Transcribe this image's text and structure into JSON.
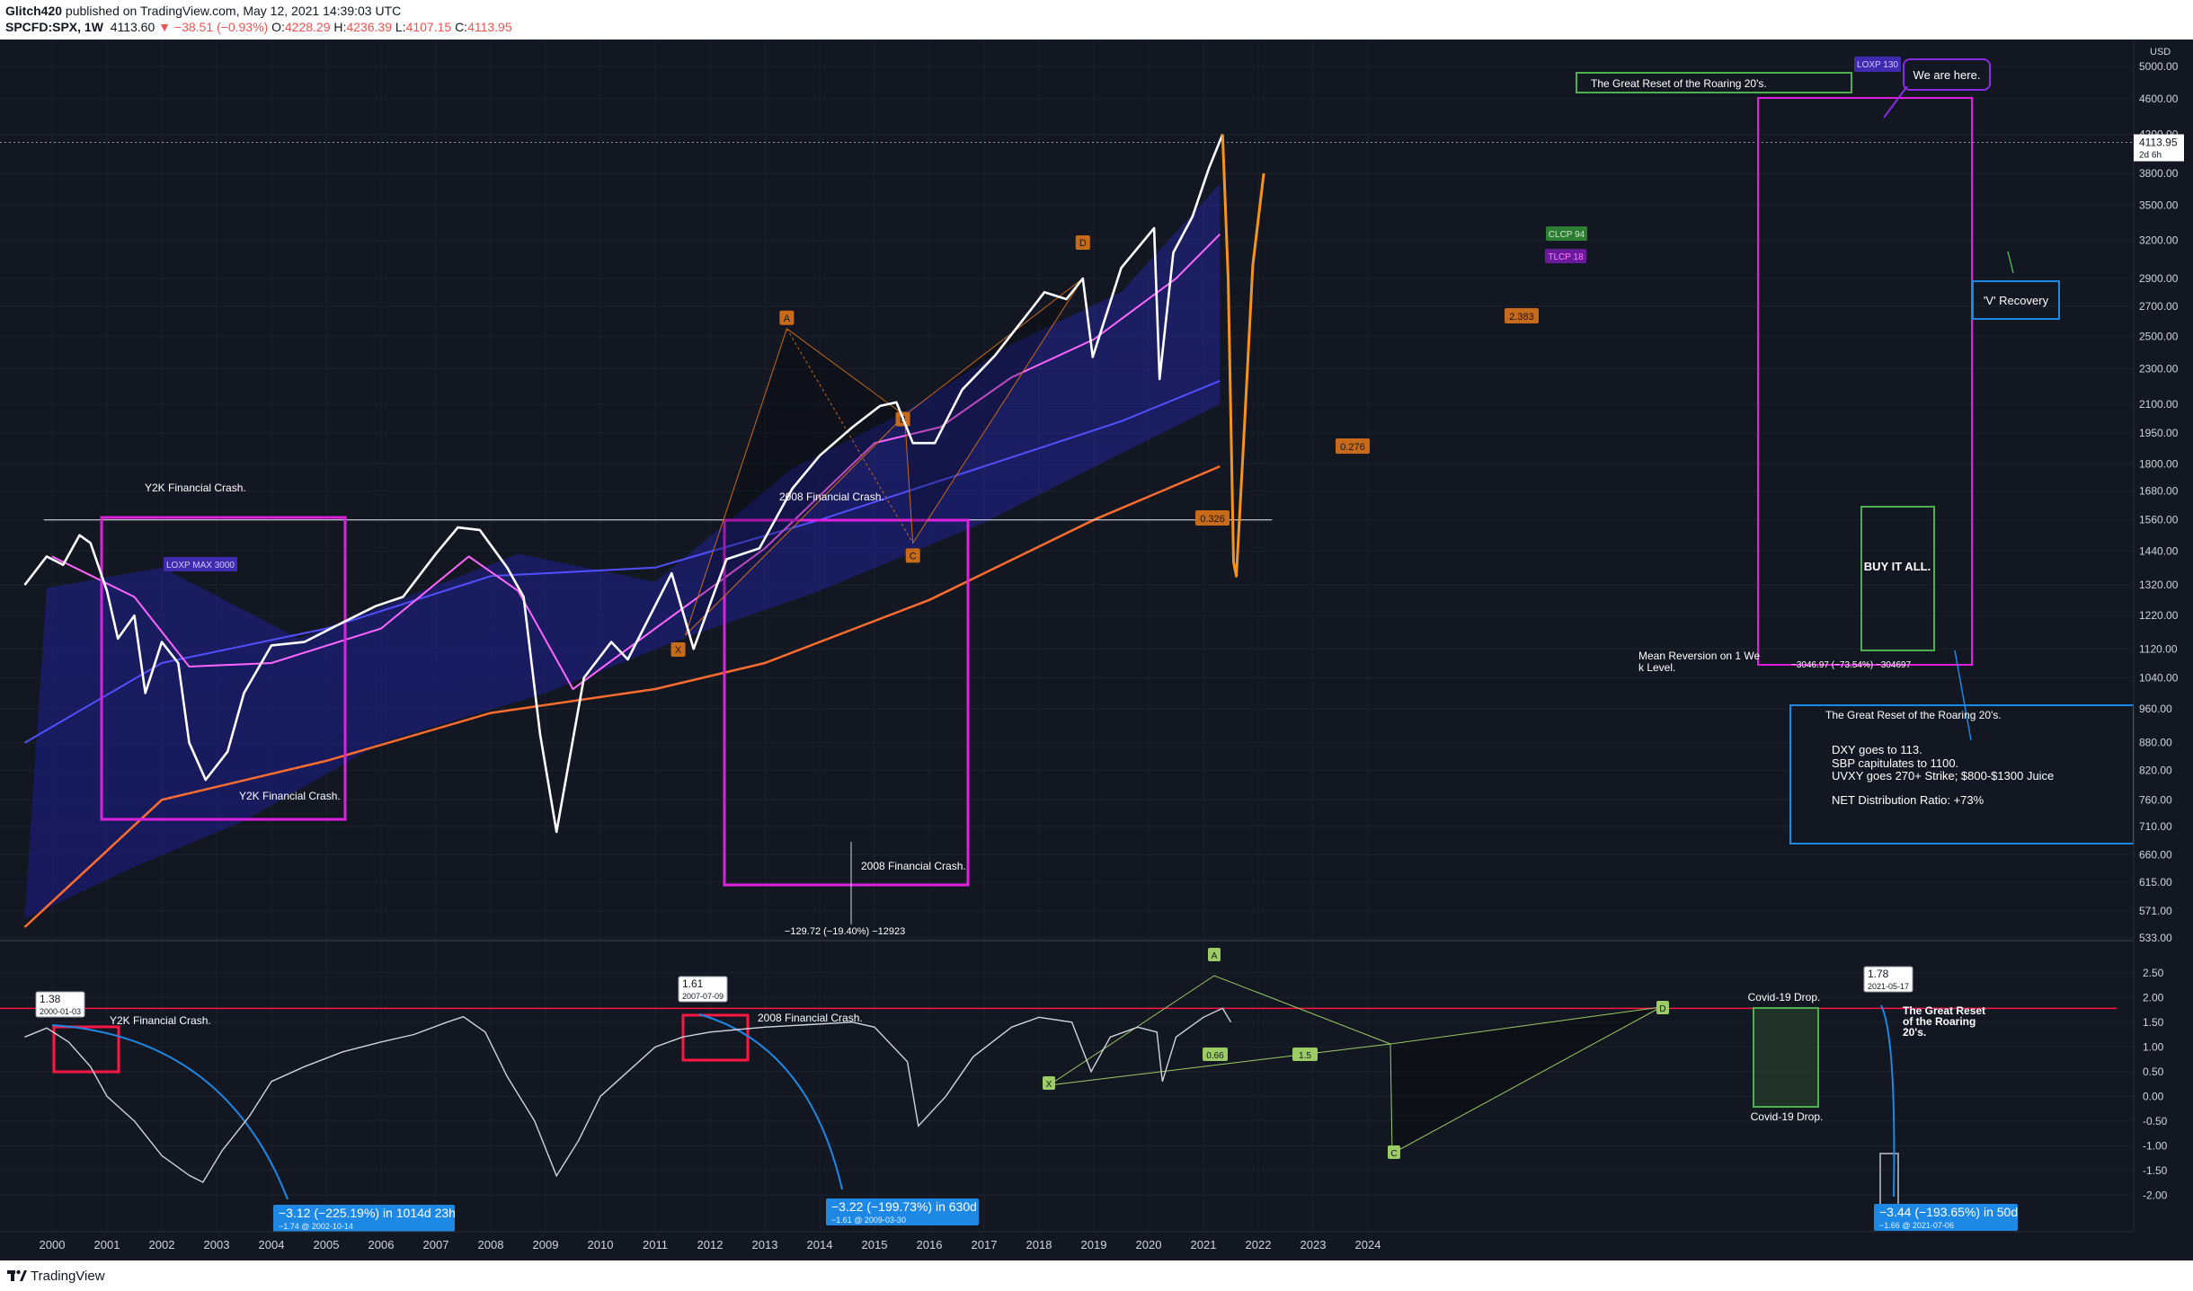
{
  "header": {
    "publisher": "Glitch420",
    "published_text": " published on TradingView.com, May 12, 2021 14:39:03 UTC",
    "symbol": "SPCFD:SPX, 1W",
    "last": "4113.60",
    "change": "−38.51 (−0.93%)",
    "open_label": "O:",
    "open": "4228.29",
    "high_label": "H:",
    "high": "4236.39",
    "low_label": "L:",
    "low": "4107.15",
    "close_label": "C:",
    "close": "4113.95"
  },
  "footer": {
    "brand": "TradingView"
  },
  "colors": {
    "background": "#131722",
    "price": "#ffffff",
    "projection": "#f7931a",
    "magenta": "#e020e0",
    "orange_ma": "#ff6d2e",
    "blue_ma": "#5050ff",
    "pink_ma": "#ff66ff",
    "green": "#4caf50",
    "callout_blue": "#1e88e5",
    "red": "#ff1744"
  },
  "main_axis": {
    "unit": "USD",
    "ticks": [
      "5000.00",
      "4600.00",
      "4200.00",
      "3800.00",
      "3500.00",
      "3200.00",
      "2900.00",
      "2700.00",
      "2500.00",
      "2300.00",
      "2100.00",
      "1950.00",
      "1800.00",
      "1680.00",
      "1560.00",
      "1440.00",
      "1320.00",
      "1220.00",
      "1120.00",
      "1040.00",
      "960.00",
      "880.00",
      "820.00",
      "760.00",
      "710.00",
      "660.00",
      "615.00",
      "571.00",
      "533.00"
    ],
    "price_tag": "4113.95",
    "price_tag_sub": "2d 6h"
  },
  "osc_axis": {
    "ticks": [
      "2.50",
      "2.00",
      "1.50",
      "1.00",
      "0.50",
      "0.00",
      "-0.50",
      "-1.00",
      "-1.50",
      "-2.00"
    ]
  },
  "x_axis": {
    "years": [
      "2000",
      "2001",
      "2002",
      "2003",
      "2004",
      "2005",
      "2006",
      "2007",
      "2008",
      "2009",
      "2010",
      "2011",
      "2012",
      "2013",
      "2014",
      "2015",
      "2016",
      "2017",
      "2018",
      "2019",
      "2020",
      "2021",
      "2022",
      "2023",
      "2024"
    ]
  },
  "chart_data": {
    "type": "line",
    "symbol": "SPCFD:SPX",
    "interval": "1W",
    "y_scale": "log",
    "ylim": [
      533,
      5000
    ],
    "xlim": [
      2000,
      2024
    ],
    "series": [
      {
        "name": "",
        "x": [
          1999.5,
          1999.9,
          2000.2,
          2000.5,
          2000.7,
          2001.0,
          2001.2,
          2001.5,
          2001.7,
          2002.0,
          2002.3,
          2002.5,
          2002.8,
          2003.2,
          2003.5,
          2004.0,
          2004.6,
          2005.2,
          2005.9,
          2006.4,
          2007.0,
          2007.4,
          2007.8,
          2008.3,
          2008.6,
          2008.9,
          2009.2,
          2009.7,
          2010.2,
          2010.5,
          2011.3,
          2011.7,
          2012.3,
          2012.9,
          2013.5,
          2014.0,
          2014.6,
          2015.1,
          2015.4,
          2015.7,
          2016.1,
          2016.6,
          2017.2,
          2017.9,
          2018.1,
          2018.5,
          2018.8,
          2018.98,
          2019.5,
          2020.1,
          2020.2,
          2020.45,
          2020.8,
          2021.1,
          2021.35
        ],
        "y": [
          1320,
          1420,
          1390,
          1500,
          1470,
          1300,
          1150,
          1220,
          1000,
          1140,
          1080,
          880,
          800,
          860,
          1000,
          1130,
          1140,
          1190,
          1250,
          1280,
          1430,
          1530,
          1520,
          1380,
          1280,
          900,
          700,
          1040,
          1140,
          1090,
          1360,
          1120,
          1410,
          1450,
          1690,
          1840,
          1980,
          2090,
          2110,
          1900,
          1900,
          2180,
          2380,
          2700,
          2800,
          2750,
          2900,
          2370,
          2980,
          3300,
          2240,
          3100,
          3400,
          3850,
          4200
        ]
      },
      {
        "name": "",
        "x": [
          2021.35,
          2021.45,
          2021.55,
          2021.6,
          2021.75,
          2021.9,
          2022.1
        ],
        "y": [
          4200,
          2900,
          1400,
          1350,
          2000,
          3000,
          3800
        ]
      }
    ],
    "horizontal_level": 1560,
    "current_price": 4113.95
  },
  "oscillator": {
    "x": [
      1999.5,
      1999.9,
      2000.3,
      2000.7,
      2001.0,
      2001.5,
      2002.0,
      2002.5,
      2002.75,
      2003.1,
      2003.6,
      2004.0,
      2004.6,
      2005.3,
      2006.0,
      2006.6,
      2007.2,
      2007.5,
      2007.9,
      2008.3,
      2008.8,
      2009.2,
      2009.6,
      2010.0,
      2010.5,
      2011.0,
      2011.5,
      2012.0,
      2012.5,
      2013.0,
      2013.8,
      2014.6,
      2015.0,
      2015.6,
      2015.8,
      2016.3,
      2016.8,
      2017.5,
      2018.0,
      2018.6,
      2018.95,
      2019.3,
      2019.8,
      2020.15,
      2020.25,
      2020.5,
      2021.0,
      2021.35,
      2021.5
    ],
    "y": [
      1.2,
      1.38,
      1.1,
      0.6,
      0.0,
      -0.5,
      -1.2,
      -1.6,
      -1.74,
      -1.1,
      -0.4,
      0.3,
      0.6,
      0.9,
      1.1,
      1.25,
      1.5,
      1.61,
      1.3,
      0.4,
      -0.5,
      -1.61,
      -0.9,
      0.0,
      0.5,
      1.0,
      1.2,
      1.3,
      1.35,
      1.4,
      1.45,
      1.5,
      1.4,
      0.7,
      -0.6,
      0.0,
      0.8,
      1.4,
      1.6,
      1.5,
      0.5,
      1.2,
      1.4,
      1.3,
      0.3,
      1.2,
      1.6,
      1.78,
      1.5
    ],
    "ylim": [
      -2.25,
      2.75
    ],
    "level": 1.78
  },
  "annotations": {
    "y2k_top": "Y2K Financial Crash.",
    "y2k_bottom": "Y2K Financial Crash.",
    "gfc_top": "2008 Financial Crash.",
    "gfc_bottom": "2008 Financial Crash.",
    "gfc_measure": "−129.72 (−19.40%) −12923",
    "loxp_max": "LOXP MAX 3000",
    "loxp_130": "LOXP 130",
    "we_are_here": "We are here.",
    "great_reset_title": "The Great Reset of the Roaring 20's.",
    "v_recovery": "'V' Recovery",
    "buy_it_all": "BUY IT ALL.",
    "reversion_measure": "−3046.97 (−73.54%) −304697",
    "mean_reversion": "Mean Reversion on 1 Week Level.",
    "clcp": "CLCP 94",
    "tlcp": "TLCP 18",
    "pattern_A": "A",
    "pattern_B": "B",
    "pattern_C": "C",
    "pattern_D": "D",
    "pattern_X": "X",
    "ratio_1": "2.383",
    "ratio_2": "0.276",
    "ratio_3": "0.326",
    "info_box": {
      "title": "The Great Reset of the Roaring 20's.",
      "lines": [
        "DXY goes to 113.",
        "SBP capitulates to 1100.",
        "UVXY goes 270+ Strike; $800-$1300 Juice",
        "NET Distribution Ratio:  +73%"
      ]
    }
  },
  "osc_annotations": {
    "y2k": "Y2K Financial Crash.",
    "gfc": "2008 Financial Crash.",
    "covid_top": "Covid-19 Drop.",
    "covid_bottom": "Covid-19 Drop.",
    "great_reset": "The Great Reset of the Roaring 20's.",
    "tag1_val": "1.38",
    "tag1_date": "2000-01-03",
    "tag2_val": "1.61",
    "tag2_date": "2007-07-09",
    "tag3_val": "1.78",
    "tag3_date": "2021-05-17",
    "callout1_main": "−3.12 (−225.19%) in 1014d 23h",
    "callout1_sub": "−1.74 @ 2002-10-14",
    "callout2_main": "−3.22 (−199.73%) in 630d",
    "callout2_sub": "−1.61 @ 2009-03-30",
    "callout3_main": "−3.44 (−193.65%) in 50d",
    "callout3_sub": "−1.66 @ 2021-07-06",
    "osc_A": "A",
    "osc_C": "C",
    "osc_D": "D",
    "osc_X": "X",
    "osc_r1": "0.66",
    "osc_r2": "1.5"
  }
}
